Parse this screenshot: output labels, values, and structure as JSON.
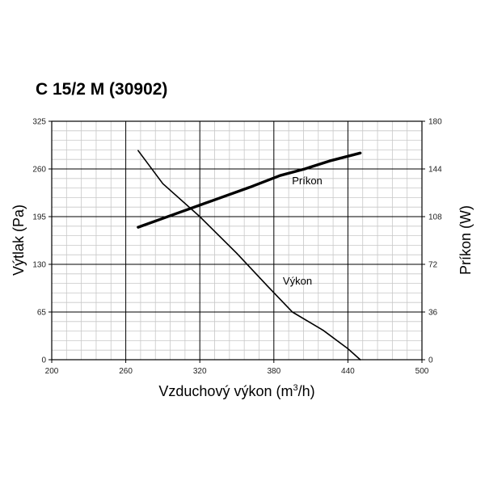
{
  "chart_data": {
    "type": "line",
    "title": "C 15/2 M (30902)",
    "xlabel": "Vzduchový výkon (m³/h)",
    "xlabel_main": "Vzduchový výkon (m",
    "xlabel_sup": "3",
    "xlabel_end": "/h)",
    "ylabel_left": "Výtlak (Pa)",
    "ylabel_right": "Príkon (W)",
    "xlim": [
      200,
      500
    ],
    "ylim_left": [
      0,
      325
    ],
    "ylim_right": [
      0,
      180
    ],
    "x_ticks": [
      "200",
      "260",
      "320",
      "380",
      "440",
      "500"
    ],
    "y_left_ticks": [
      "0",
      "65",
      "130",
      "195",
      "260",
      "325"
    ],
    "y_right_ticks": [
      "0",
      "36",
      "72",
      "108",
      "144",
      "180"
    ],
    "grid": true,
    "series": [
      {
        "name": "Výkon",
        "axis": "left",
        "x": [
          270,
          290,
          320,
          350,
          375,
          395,
          420,
          440,
          450
        ],
        "y": [
          285,
          240,
          195,
          145,
          100,
          65,
          40,
          15,
          0
        ]
      },
      {
        "name": "Príkon",
        "axis": "right",
        "x": [
          270,
          300,
          330,
          360,
          385,
          405,
          425,
          450
        ],
        "y": [
          100,
          110,
          120,
          130,
          139,
          144,
          150,
          156
        ]
      }
    ]
  }
}
